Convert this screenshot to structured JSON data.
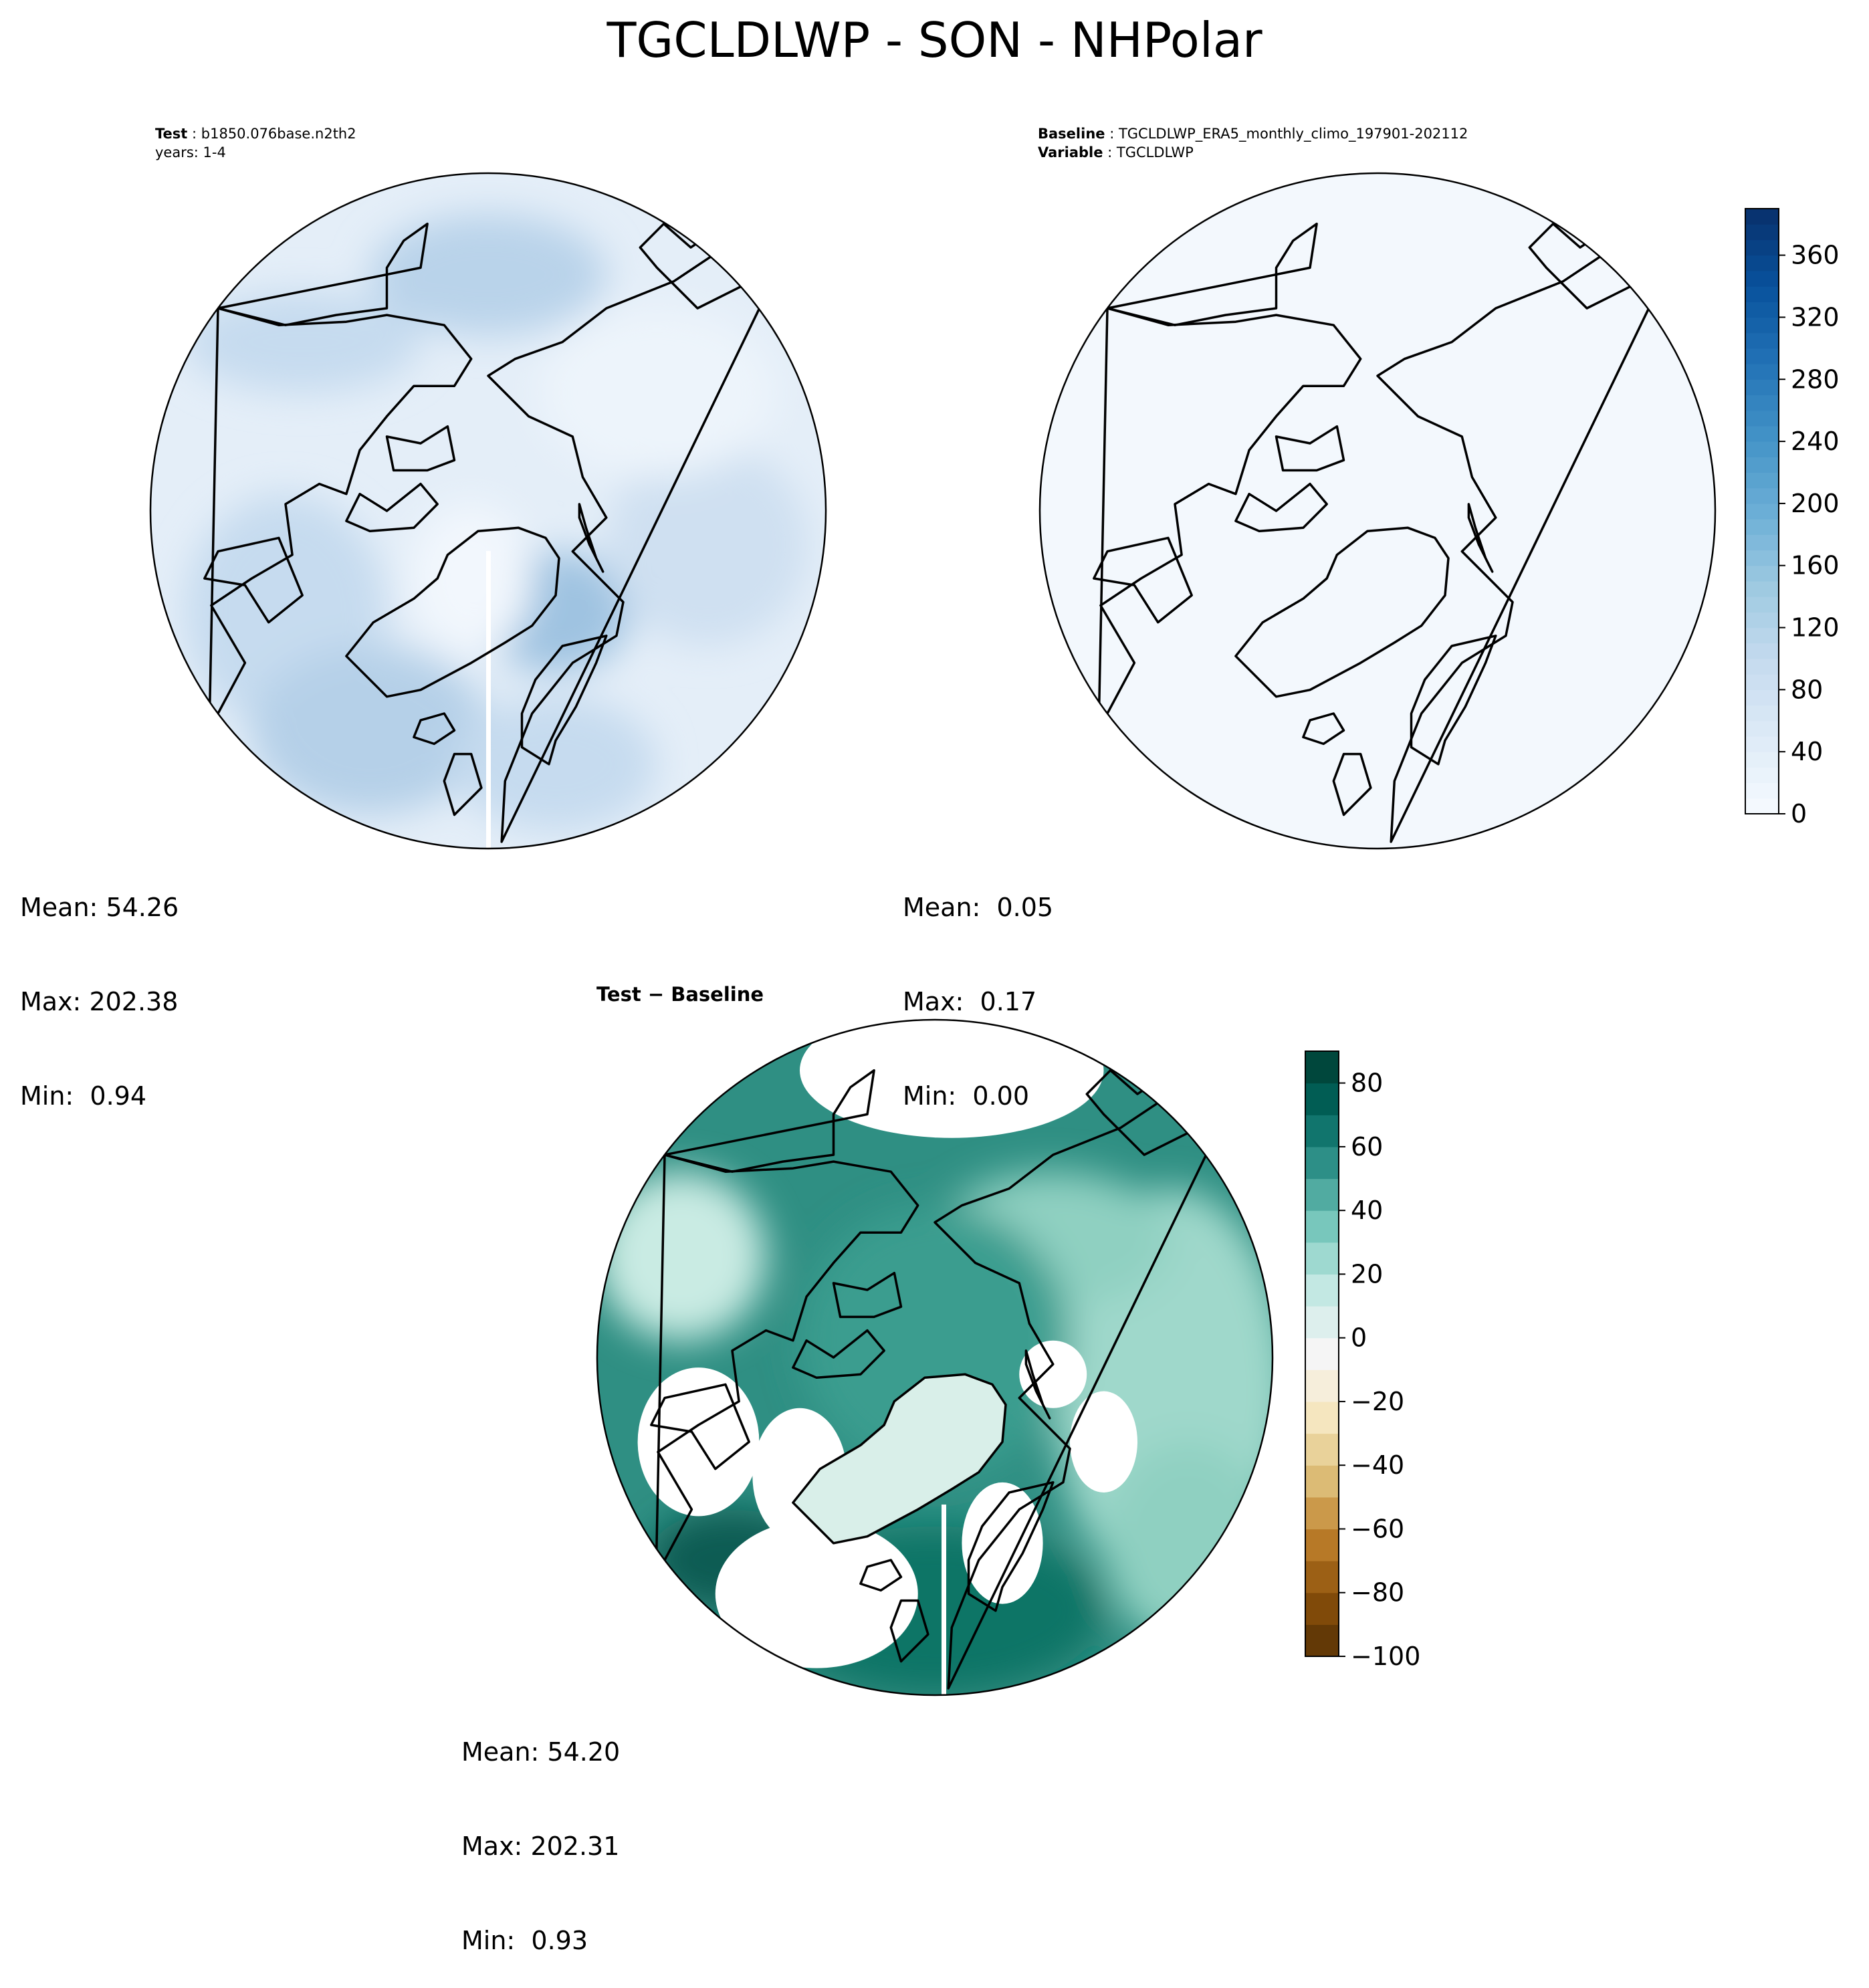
{
  "title": "TGCLDLWP - SON - NHPolar",
  "panels": [
    {
      "id": "test",
      "label1_key": "Test",
      "label1_val": "b1850.076base.n2th2",
      "label2": "years: 1-4",
      "stats": {
        "mean": "Mean: 54.26",
        "max": "Max: 202.38",
        "min": "Min:  0.94"
      }
    },
    {
      "id": "baseline",
      "label1_key": "Baseline",
      "label1_val": "TGCLDLWP_ERA5_monthly_climo_197901-202112",
      "label2_key": "Variable",
      "label2_val": "TGCLDLWP",
      "stats": {
        "mean": "Mean:  0.05",
        "max": "Max:  0.17",
        "min": "Min:  0.00"
      }
    },
    {
      "id": "diff",
      "title": "Test − Baseline",
      "stats": {
        "mean": "Mean: 54.20",
        "max": "Max: 202.31",
        "min": "Min:  0.93"
      }
    }
  ],
  "colorbars": {
    "main": {
      "colormap": "Blues",
      "range": [
        0,
        390
      ],
      "ticks": [
        0,
        40,
        80,
        120,
        160,
        200,
        240,
        280,
        320,
        360
      ],
      "labels": [
        "0",
        "40",
        "80",
        "120",
        "160",
        "200",
        "240",
        "280",
        "320",
        "360"
      ]
    },
    "diff": {
      "colormap": "BrBG",
      "range": [
        -100,
        90
      ],
      "ticks": [
        -100,
        -80,
        -60,
        -40,
        -20,
        0,
        20,
        40,
        60,
        80
      ],
      "labels": [
        "−100",
        "−80",
        "−60",
        "−40",
        "−20",
        "0",
        "20",
        "40",
        "60",
        "80"
      ]
    }
  }
}
